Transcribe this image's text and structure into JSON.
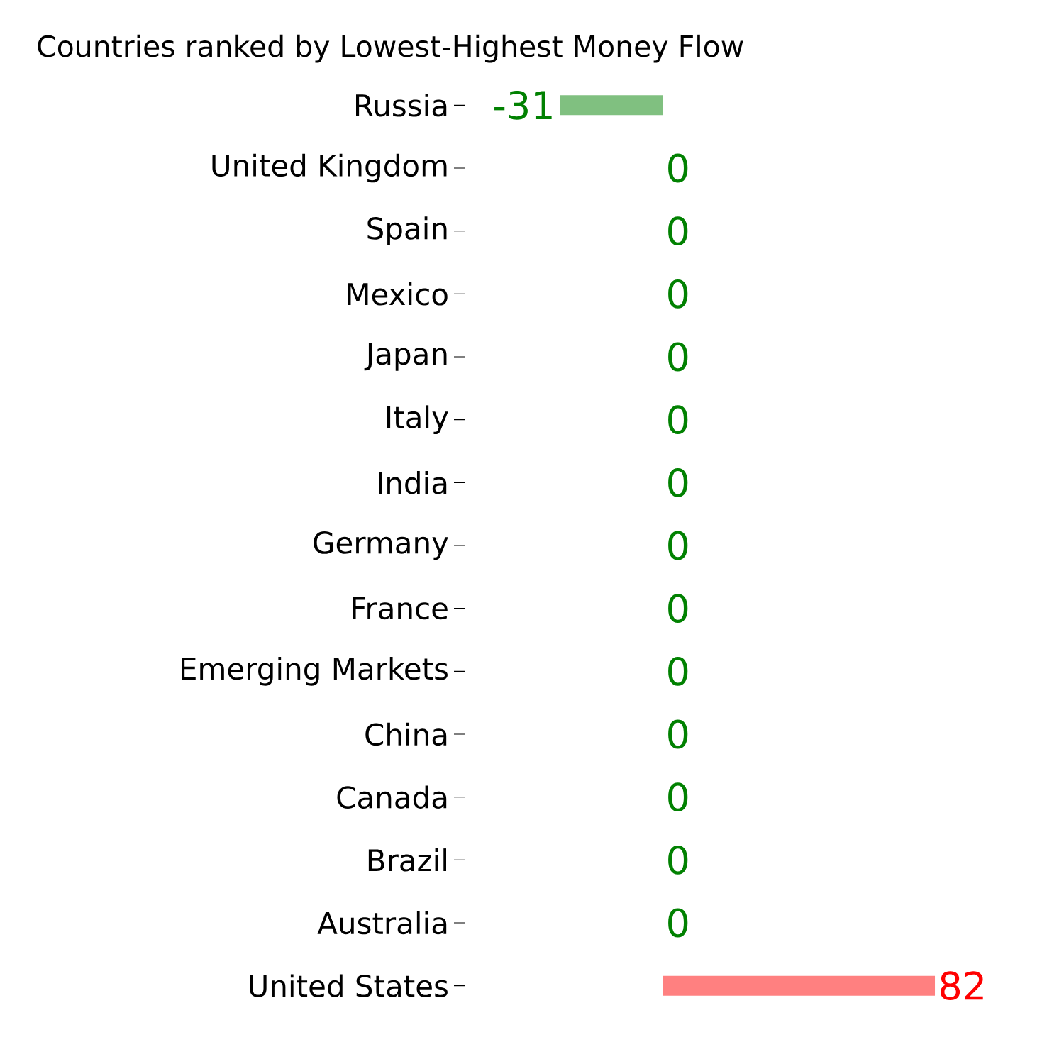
{
  "chart_data": {
    "type": "bar",
    "orientation": "horizontal",
    "title": "Countries ranked by Lowest-Highest Money Flow",
    "categories": [
      "Russia",
      "United Kingdom",
      "Spain",
      "Mexico",
      "Japan",
      "Italy",
      "India",
      "Germany",
      "France",
      "Emerging Markets",
      "China",
      "Canada",
      "Brazil",
      "Australia",
      "United States"
    ],
    "values": [
      -31,
      0,
      0,
      0,
      0,
      0,
      0,
      0,
      0,
      0,
      0,
      0,
      0,
      0,
      82
    ],
    "colors": [
      "#80c080",
      "#80c080",
      "#80c080",
      "#80c080",
      "#80c080",
      "#80c080",
      "#80c080",
      "#80c080",
      "#80c080",
      "#80c080",
      "#80c080",
      "#80c080",
      "#80c080",
      "#80c080",
      "#ff8080"
    ],
    "data_labels": true
  }
}
